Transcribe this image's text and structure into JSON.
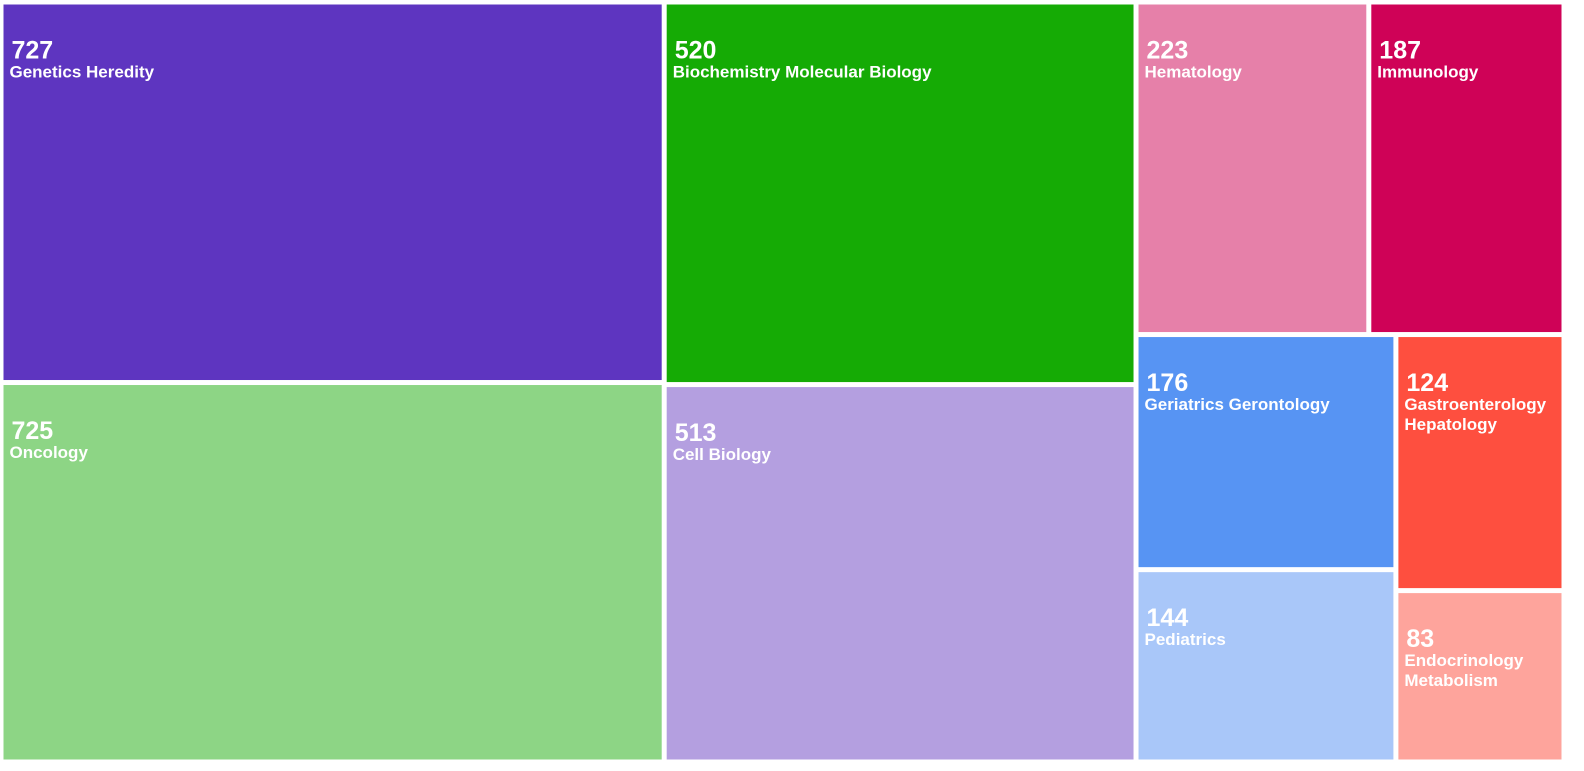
{
  "chart_data": {
    "type": "treemap",
    "categories": [
      "Genetics Heredity",
      "Oncology",
      "Biochemistry Molecular Biology",
      "Cell Biology",
      "Hematology",
      "Immunology",
      "Geriatrics Gerontology",
      "Pediatrics",
      "Gastroenterology Hepatology",
      "Endocrinology Metabolism"
    ],
    "values": [
      727,
      725,
      520,
      513,
      223,
      187,
      176,
      144,
      124,
      83
    ],
    "colors": [
      "#5e35c0",
      "#8dd585",
      "#15ab05",
      "#b49fe0",
      "#e680a9",
      "#cf0257",
      "#5794f3",
      "#a9c7f9",
      "#fe4f3f",
      "#fea49c"
    ]
  }
}
